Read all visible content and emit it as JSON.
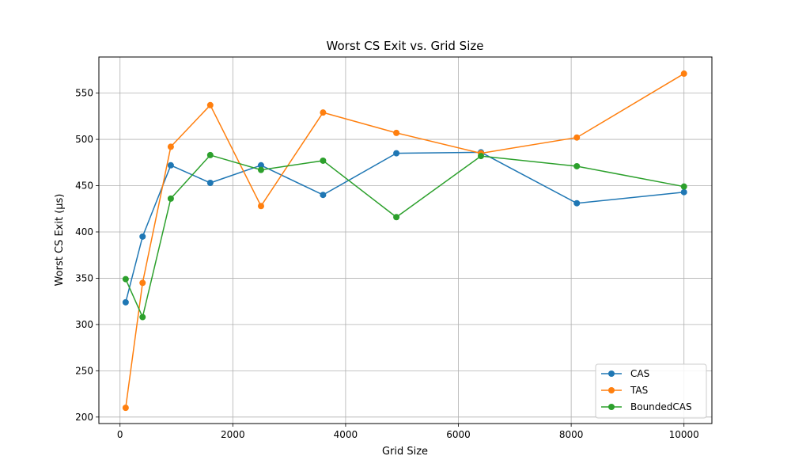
{
  "chart_data": {
    "type": "line",
    "title": "Worst CS Exit vs. Grid Size",
    "xlabel": "Grid Size",
    "ylabel": "Worst CS Exit (µs)",
    "xlim": [
      -375,
      10495
    ],
    "ylim": [
      193,
      589
    ],
    "xticks": [
      0,
      2000,
      4000,
      6000,
      8000,
      10000
    ],
    "yticks": [
      200,
      250,
      300,
      350,
      400,
      450,
      500,
      550
    ],
    "grid": true,
    "legend_position": "lower-right",
    "x": [
      100,
      400,
      900,
      1600,
      2500,
      3600,
      4900,
      6400,
      8100,
      10000
    ],
    "series": [
      {
        "name": "CAS",
        "color": "#1f77b4",
        "values": [
          324,
          395,
          472,
          453,
          472,
          440,
          485,
          486,
          431,
          443
        ]
      },
      {
        "name": "TAS",
        "color": "#ff7f0e",
        "values": [
          210,
          345,
          492,
          537,
          428,
          529,
          507,
          485,
          502,
          571
        ]
      },
      {
        "name": "BoundedCAS",
        "color": "#2ca02c",
        "values": [
          349,
          308,
          436,
          483,
          467,
          477,
          416,
          482,
          471,
          449
        ]
      }
    ]
  }
}
